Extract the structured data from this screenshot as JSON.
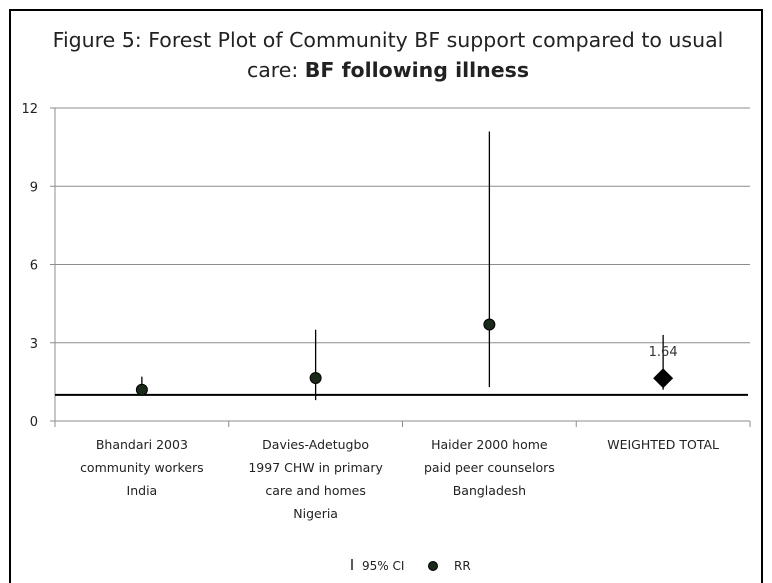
{
  "chart_data": {
    "type": "scatter",
    "title_line1": "Figure 5: Forest Plot of Community BF support compared to usual",
    "title_line2_prefix": "care: ",
    "title_line2_bold": "BF following illness",
    "categories": [
      [
        "Bhandari 2003",
        "community workers",
        "India"
      ],
      [
        "Davies-Adetugbo",
        "1997 CHW in primary",
        "care and homes",
        "Nigeria"
      ],
      [
        "Haider 2000 home",
        "paid peer counselors",
        "Bangladesh"
      ],
      [
        "WEIGHTED TOTAL"
      ]
    ],
    "series": [
      {
        "name": "95% CI",
        "lower": [
          1.0,
          0.8,
          1.3,
          1.2
        ],
        "upper": [
          1.7,
          3.5,
          11.1,
          3.3
        ]
      },
      {
        "name": "RR",
        "values": [
          1.2,
          1.65,
          3.7,
          1.64
        ]
      }
    ],
    "data_labels": [
      "",
      "",
      "",
      "1.64"
    ],
    "point_markers": [
      "circle",
      "circle",
      "circle",
      "diamond"
    ],
    "reference_line": 1,
    "ylim": [
      0,
      12
    ],
    "yticks": [
      "0",
      "3",
      "6",
      "9",
      "12"
    ],
    "grid": true,
    "legend_position": "bottom",
    "colors": {
      "gridline": "#8c8c8c",
      "marker": "#000000",
      "reference": "#000000"
    }
  }
}
